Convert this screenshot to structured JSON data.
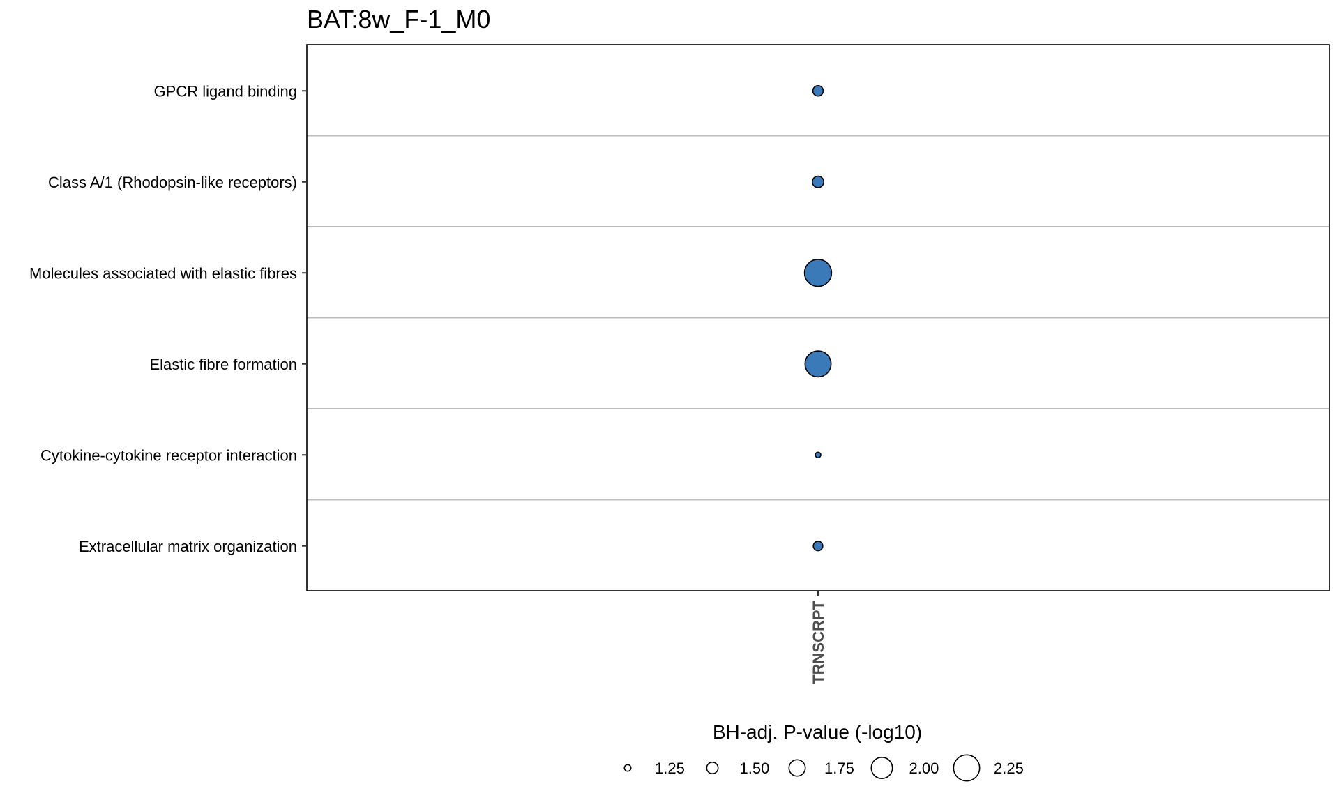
{
  "chart_data": {
    "type": "scatter",
    "title": "BAT:8w_F-1_M0",
    "x_categories": [
      "TRNSCRPT"
    ],
    "y_categories": [
      "GPCR ligand binding",
      "Class A/1 (Rhodopsin-like receptors)",
      "Molecules associated with elastic fibres",
      "Elastic fibre formation",
      "Cytokine-cytokine receptor interaction",
      "Extracellular matrix organization"
    ],
    "points": [
      {
        "x": "TRNSCRPT",
        "y": "GPCR ligand binding",
        "size_value": 1.45
      },
      {
        "x": "TRNSCRPT",
        "y": "Class A/1 (Rhodopsin-like receptors)",
        "size_value": 1.5
      },
      {
        "x": "TRNSCRPT",
        "y": "Molecules associated with elastic fibres",
        "size_value": 2.3
      },
      {
        "x": "TRNSCRPT",
        "y": "Elastic fibre formation",
        "size_value": 2.25
      },
      {
        "x": "TRNSCRPT",
        "y": "Cytokine-cytokine receptor interaction",
        "size_value": 1.2
      },
      {
        "x": "TRNSCRPT",
        "y": "Extracellular matrix organization",
        "size_value": 1.4
      }
    ],
    "legend": {
      "title": "BH-adj. P-value (-log10)",
      "placement": "bottom",
      "entries": [
        1.25,
        1.5,
        1.75,
        2.0,
        2.25
      ],
      "labels": [
        "1.25",
        "1.50",
        "1.75",
        "2.00",
        "2.25"
      ]
    },
    "point_color": "#3a7ab8",
    "grid": "horizontal"
  }
}
